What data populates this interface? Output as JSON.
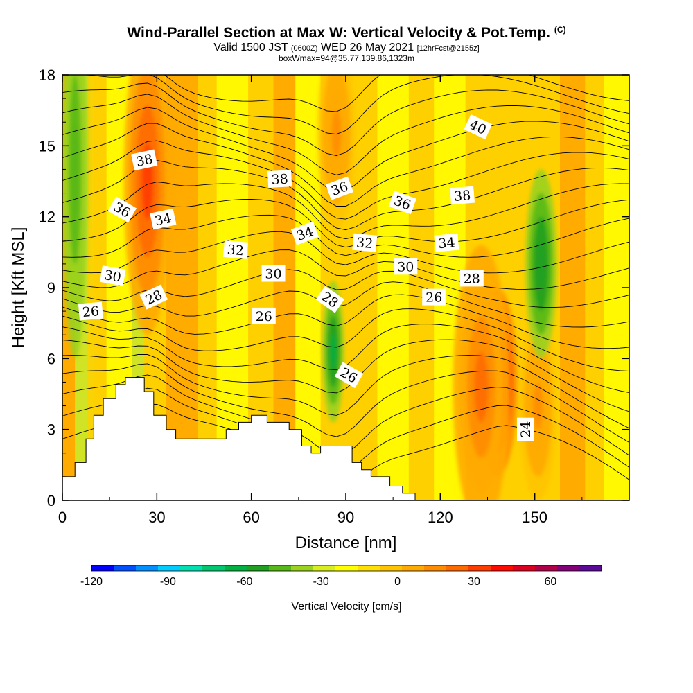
{
  "header": {
    "title": "Wind-Parallel Section at Max W: Vertical Velocity & Pot.Temp.",
    "copyright": "(C)",
    "subtitle_a": "Valid 1500 JST",
    "subtitle_b": "(0600Z)",
    "subtitle_c": "WED 26 May 2021",
    "subtitle_d": "[12hrFcst@2155z]",
    "subtitle2": "boxWmax=94@35.77,139.86,1323m"
  },
  "colors": {
    "bright_yellow": "#ffff00",
    "yellow_orange": "#ffd000",
    "orange": "#ffa500",
    "dark_orange": "#ff8000",
    "red": "#ff2000",
    "crimson": "#c0002a",
    "purple": "#5a1e8c",
    "yellow_green": "#c8e62a",
    "green": "#40b820",
    "terrain": "#ffffff",
    "contour": "#000000"
  },
  "chart_data": {
    "type": "heatmap",
    "xlabel": "Distance [nm]",
    "ylabel": "Height [Kft MSL]",
    "xlim": [
      0,
      180
    ],
    "ylim": [
      0,
      18
    ],
    "x_ticks": [
      "0",
      "30",
      "60",
      "90",
      "120",
      "150"
    ],
    "x_tick_values": [
      0,
      30,
      60,
      90,
      120,
      150
    ],
    "y_ticks": [
      "0",
      "3",
      "6",
      "9",
      "12",
      "15",
      "18"
    ],
    "y_tick_values": [
      0,
      3,
      6,
      9,
      12,
      15,
      18
    ],
    "colorbar": {
      "label": "Vertical Velocity [cm/s]",
      "range": [
        -120,
        80
      ],
      "step": 10,
      "tick_labels": [
        "-120",
        "-90",
        "-60",
        "-30",
        "0",
        "30",
        "60"
      ],
      "tick_values": [
        -120,
        -90,
        -60,
        -30,
        0,
        30,
        60
      ],
      "colors": [
        "#0000ff",
        "#0050ff",
        "#0090ff",
        "#00ccff",
        "#00e0b0",
        "#00c870",
        "#00b040",
        "#20a020",
        "#58b818",
        "#9ad21e",
        "#d8ee1e",
        "#ffff00",
        "#ffe000",
        "#ffc400",
        "#ffaa00",
        "#ff8c00",
        "#ff6a00",
        "#ff3c00",
        "#ff0a00",
        "#dc0020",
        "#b0004a",
        "#820078",
        "#5a0a96"
      ]
    },
    "terrain_profile": {
      "x": [
        0,
        4,
        4,
        7.5,
        7.5,
        10,
        10,
        13,
        13,
        17,
        17,
        20,
        20,
        26,
        26,
        29,
        29,
        33,
        33,
        36,
        36,
        45,
        45,
        52,
        52,
        56,
        56,
        60,
        60,
        65,
        65,
        72,
        72,
        76,
        76,
        79,
        79,
        82,
        82,
        92,
        92,
        95,
        95,
        98,
        98,
        104,
        104,
        108,
        108,
        112,
        112,
        180
      ],
      "height_kft": [
        1.0,
        1.0,
        1.6,
        1.6,
        2.6,
        2.6,
        3.6,
        3.6,
        4.3,
        4.3,
        4.9,
        4.9,
        5.2,
        5.2,
        4.6,
        4.6,
        3.6,
        3.6,
        3.0,
        3.0,
        2.6,
        2.6,
        2.6,
        2.6,
        3.0,
        3.0,
        3.3,
        3.3,
        3.6,
        3.6,
        3.3,
        3.3,
        3.0,
        3.0,
        2.3,
        2.3,
        2.0,
        2.0,
        2.3,
        2.3,
        1.6,
        1.6,
        1.3,
        1.3,
        1.0,
        1.0,
        0.6,
        0.6,
        0.3,
        0.3,
        0.0,
        0.0
      ]
    },
    "w_features": [
      {
        "x": 27,
        "y": 13.5,
        "w": 15,
        "h_kft": 6.5,
        "peak_w": 55
      },
      {
        "x": 87,
        "y": 15.5,
        "w": 12,
        "h_kft": 4.0,
        "peak_w": 30
      },
      {
        "x": 138,
        "y": 5.0,
        "w": 13,
        "h_kft": 4.0,
        "peak_w": 75
      },
      {
        "x": 133,
        "y": 4.8,
        "w": 18,
        "h_kft": 6.0,
        "peak_w": 40
      },
      {
        "x": 151,
        "y": 4.0,
        "w": 12,
        "h_kft": 4.0,
        "peak_w": 35
      },
      {
        "x": 4,
        "y": 14.0,
        "w": 8,
        "h_kft": 8.0,
        "peak_w": -40
      },
      {
        "x": 86,
        "y": 6.3,
        "w": 7,
        "h_kft": 3.0,
        "peak_w": -55
      },
      {
        "x": 152,
        "y": 10.0,
        "w": 10,
        "h_kft": 4.0,
        "peak_w": -50
      }
    ],
    "contour_labels": [
      {
        "text": "38",
        "x": 26,
        "y": 14.4,
        "angle": -12
      },
      {
        "text": "36",
        "x": 19,
        "y": 12.3,
        "angle": 30
      },
      {
        "text": "34",
        "x": 32,
        "y": 11.9,
        "angle": -12
      },
      {
        "text": "30",
        "x": 16,
        "y": 9.5,
        "angle": 10
      },
      {
        "text": "28",
        "x": 29,
        "y": 8.6,
        "angle": -25
      },
      {
        "text": "26",
        "x": 9,
        "y": 8.0,
        "angle": -5
      },
      {
        "text": "38",
        "x": 69,
        "y": 13.6,
        "angle": -3
      },
      {
        "text": "32",
        "x": 55,
        "y": 10.6,
        "angle": 5
      },
      {
        "text": "30",
        "x": 67,
        "y": 9.6,
        "angle": 0
      },
      {
        "text": "26",
        "x": 64,
        "y": 7.8,
        "angle": 0
      },
      {
        "text": "34",
        "x": 77,
        "y": 11.3,
        "angle": -20
      },
      {
        "text": "36",
        "x": 88,
        "y": 13.2,
        "angle": -20
      },
      {
        "text": "28",
        "x": 85,
        "y": 8.5,
        "angle": 35
      },
      {
        "text": "26",
        "x": 91,
        "y": 5.3,
        "angle": 30
      },
      {
        "text": "32",
        "x": 96,
        "y": 10.9,
        "angle": 5
      },
      {
        "text": "36",
        "x": 108,
        "y": 12.6,
        "angle": 20
      },
      {
        "text": "30",
        "x": 109,
        "y": 9.9,
        "angle": 0
      },
      {
        "text": "26",
        "x": 118,
        "y": 8.6,
        "angle": 0
      },
      {
        "text": "34",
        "x": 122,
        "y": 10.9,
        "angle": -5
      },
      {
        "text": "38",
        "x": 127,
        "y": 12.9,
        "angle": -5
      },
      {
        "text": "40",
        "x": 132,
        "y": 15.8,
        "angle": 25
      },
      {
        "text": "28",
        "x": 130,
        "y": 9.4,
        "angle": 0
      },
      {
        "text": "24",
        "x": 147,
        "y": 3.0,
        "angle": -90
      }
    ]
  }
}
